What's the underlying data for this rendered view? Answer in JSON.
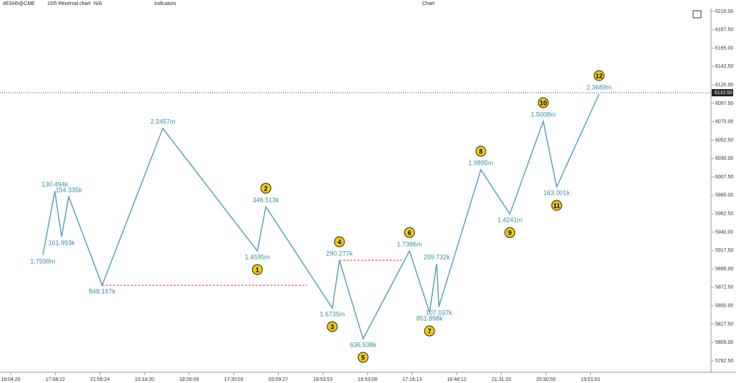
{
  "window_title": "Chart",
  "toolbar": {
    "symbol": "#ESH5@CME",
    "chart_type": "10/5 Reversal chart",
    "source": "N/A",
    "indicators": "Indicators"
  },
  "chart_data": {
    "type": "line",
    "color": "#5aa3b5",
    "xlim": [
      -0.24,
      15.7
    ],
    "ylim": [
      5782.5,
      6210
    ],
    "xticks": [
      {
        "value": 0,
        "label": "18:04:20"
      },
      {
        "value": 1,
        "label": "17:08:22"
      },
      {
        "value": 2,
        "label": "21:59:24"
      },
      {
        "value": 3,
        "label": "10:18:20"
      },
      {
        "value": 4,
        "label": "18:26:09"
      },
      {
        "value": 5,
        "label": "17:30:03"
      },
      {
        "value": 6,
        "label": "03:09:27"
      },
      {
        "value": 7,
        "label": "18:53:53"
      },
      {
        "value": 8,
        "label": "16:53:08"
      },
      {
        "value": 9,
        "label": "17:18:13"
      },
      {
        "value": 10,
        "label": "16:48:12"
      },
      {
        "value": 11,
        "label": "21:31:20"
      },
      {
        "value": 12,
        "label": "20:30:50"
      },
      {
        "value": 13,
        "label": "19:01:01"
      }
    ],
    "yticks": [
      {
        "value": 6210,
        "label": "6210.00"
      },
      {
        "value": 6187.5,
        "label": "6187.50"
      },
      {
        "value": 6165,
        "label": "6165.00"
      },
      {
        "value": 6142.5,
        "label": "6142.50"
      },
      {
        "value": 6120,
        "label": "6120.00"
      },
      {
        "value": 6097.5,
        "label": "6097.50"
      },
      {
        "value": 6075,
        "label": "6075.00"
      },
      {
        "value": 6052.5,
        "label": "6052.50"
      },
      {
        "value": 6030,
        "label": "6030.00"
      },
      {
        "value": 6007.5,
        "label": "6007.50"
      },
      {
        "value": 5985,
        "label": "5985.00"
      },
      {
        "value": 5962.5,
        "label": "5962.50"
      },
      {
        "value": 5940,
        "label": "5940.00"
      },
      {
        "value": 5917.5,
        "label": "5917.50"
      },
      {
        "value": 5895,
        "label": "5895.00"
      },
      {
        "value": 5872.5,
        "label": "5872.50"
      },
      {
        "value": 5850,
        "label": "5850.00"
      },
      {
        "value": 5827.5,
        "label": "5827.50"
      },
      {
        "value": 5805,
        "label": "5805.00"
      },
      {
        "value": 5782.5,
        "label": "5782.50"
      }
    ],
    "x": [
      0.72,
      0.99,
      1.14,
      1.3,
      2.05,
      3.41,
      5.53,
      5.72,
      7.21,
      7.37,
      7.9,
      8.94,
      9.39,
      9.55,
      9.6,
      10.54,
      11.19,
      11.94,
      12.24,
      13.19
    ],
    "values": [
      5911.6,
      5990.1,
      5934.3,
      5983.2,
      5875.0,
      6066.9,
      5916.9,
      5971.0,
      5847.1,
      5905.5,
      5809.5,
      5916.9,
      5841.8,
      5901.2,
      5848.8,
      6016.3,
      5962.2,
      6075.6,
      5995.4,
      6108.8
    ],
    "volume_labels": [
      "1.7599m",
      "130.494k",
      "161.993k",
      "154.335k",
      "848.167k",
      "2.2457m",
      "1.4595m",
      "348.513k",
      "1.6735m",
      "290.277k",
      "636.538k",
      "1.7386m",
      "851.898k",
      "259.732k",
      "107.037k",
      "1.9895m",
      "1.4241m",
      "1.5008m",
      "163.001k",
      "2.3689m"
    ],
    "waves": [
      null,
      null,
      null,
      null,
      null,
      null,
      "1",
      "2",
      "3",
      "4",
      "5",
      "6",
      "7",
      null,
      null,
      "8",
      "9",
      "10",
      "11",
      "12"
    ],
    "levels": [
      {
        "price": 5875.0,
        "from": 2.05,
        "to": 6.65
      },
      {
        "price": 5905.5,
        "from": 7.37,
        "to": 8.77
      }
    ],
    "level_color": "#e03030",
    "last_price": {
      "value": 6110.5,
      "label": "6110.50"
    }
  }
}
